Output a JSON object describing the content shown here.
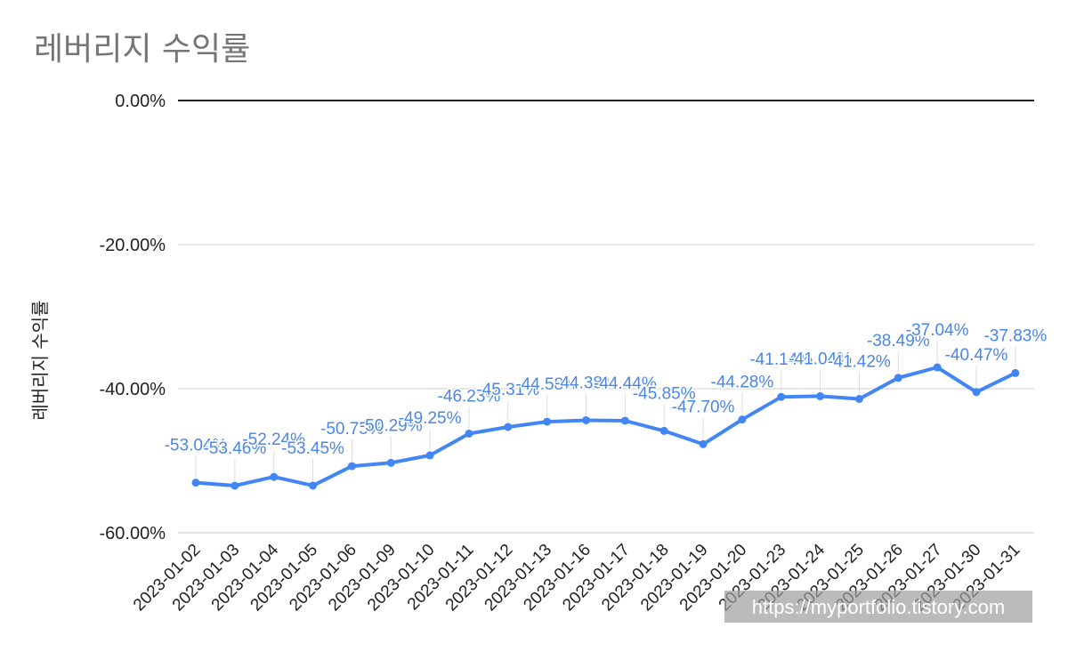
{
  "chart_data": {
    "type": "line",
    "title": "레버리지 수익률",
    "xlabel": "",
    "ylabel": "레버리지 수익률",
    "categories": [
      "2023-01-02",
      "2023-01-03",
      "2023-01-04",
      "2023-01-05",
      "2023-01-06",
      "2023-01-09",
      "2023-01-10",
      "2023-01-11",
      "2023-01-12",
      "2023-01-13",
      "2023-01-16",
      "2023-01-17",
      "2023-01-18",
      "2023-01-19",
      "2023-01-20",
      "2023-01-23",
      "2023-01-24",
      "2023-01-25",
      "2023-01-26",
      "2023-01-27",
      "2023-01-30",
      "2023-01-31"
    ],
    "series": [
      {
        "values": [
          -53.04,
          -53.46,
          -52.24,
          -53.45,
          -50.75,
          -50.29,
          -49.25,
          -46.23,
          -45.31,
          -44.58,
          -44.38,
          -44.44,
          -45.85,
          -47.7,
          -44.28,
          -41.14,
          -41.04,
          -41.42,
          -38.49,
          -37.04,
          -40.47,
          -37.83
        ],
        "labels": [
          "-53.04%",
          "-53.46%",
          "-52.24%",
          "-53.45%",
          "-50.75%",
          "-50.29%",
          "-49.25%",
          "-46.23%",
          "-45.31%",
          "-44.58%",
          "-44.38%",
          "-44.44%",
          "-45.85%",
          "-47.70%",
          "-44.28%",
          "-41.14%",
          "-41.04%",
          "-41.42%",
          "-38.49%",
          "-37.04%",
          "-40.47%",
          "-37.83%"
        ]
      }
    ],
    "yticks": [
      0,
      -20,
      -40,
      -60
    ],
    "ytick_labels": [
      "0.00%",
      "-20.00%",
      "-40.00%",
      "-60.00%"
    ],
    "ylim": [
      -60,
      0
    ],
    "grid": true,
    "legend": "none",
    "line_color": "#4285f4",
    "label_color": "#4a86e8"
  },
  "watermark": "https://myportfolio.tistory.com"
}
